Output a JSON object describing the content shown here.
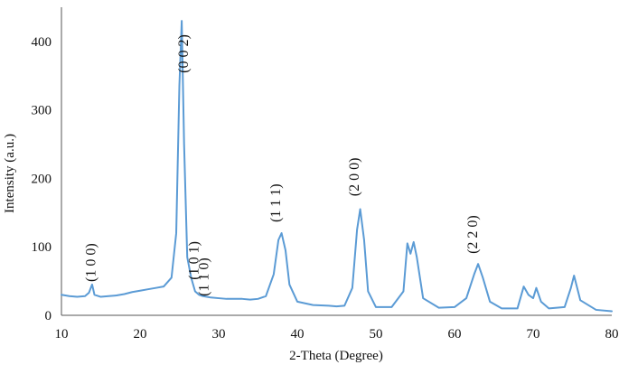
{
  "chart_data": {
    "type": "line",
    "title": "",
    "xlabel": "2-Theta (Degree)",
    "ylabel": "Intensity (a.u.)",
    "xlim": [
      10,
      80
    ],
    "ylim": [
      0,
      450
    ],
    "xticks": [
      10,
      20,
      30,
      40,
      50,
      60,
      70,
      80
    ],
    "yticks": [
      0,
      100,
      200,
      300,
      400
    ],
    "grid": false,
    "line_color": "#5b9bd5",
    "series": [
      {
        "x": [
          10,
          11,
          12,
          13,
          13.5,
          13.9,
          14.2,
          15,
          16,
          17,
          18,
          19,
          20,
          21,
          22,
          23,
          24,
          24.6,
          25.0,
          25.3,
          25.6,
          26.0,
          26.5,
          27.0,
          27.5,
          28.0,
          29.0,
          30.0,
          31.0,
          32.0,
          33.0,
          34.0,
          35.0,
          36.0,
          37.0,
          37.6,
          38.0,
          38.5,
          39.0,
          40.0,
          42.0,
          44.0,
          45.0,
          46.0,
          47.0,
          47.6,
          48.0,
          48.5,
          49.0,
          50.0,
          52.0,
          53.5,
          54.0,
          54.4,
          54.8,
          55.2,
          56.0,
          58.0,
          60.0,
          61.5,
          62.5,
          63.0,
          63.6,
          64.5,
          66.0,
          68.0,
          68.8,
          69.4,
          70.0,
          70.4,
          71.0,
          72.0,
          74.0,
          74.8,
          75.2,
          76.0,
          78.0,
          80.0
        ],
        "y": [
          30,
          28,
          27,
          28,
          33,
          45,
          30,
          27,
          28,
          29,
          31,
          34,
          36,
          38,
          40,
          42,
          55,
          120,
          335,
          430,
          250,
          85,
          55,
          35,
          30,
          28,
          26,
          25,
          24,
          24,
          24,
          23,
          24,
          28,
          60,
          110,
          120,
          95,
          45,
          20,
          15,
          14,
          13,
          14,
          40,
          125,
          155,
          110,
          35,
          12,
          12,
          35,
          105,
          90,
          107,
          85,
          25,
          11,
          12,
          25,
          60,
          75,
          55,
          20,
          10,
          10,
          42,
          30,
          25,
          40,
          20,
          10,
          12,
          40,
          58,
          22,
          8,
          6
        ]
      }
    ],
    "annotations": [
      {
        "text": "(0 0 2)",
        "x": 26.1,
        "y": 382
      },
      {
        "text": "(1 0 0)",
        "x": 14.3,
        "y": 77
      },
      {
        "text": "(1 0 1)",
        "x": 27.4,
        "y": 80
      },
      {
        "text": "(1 1 0)",
        "x": 28.7,
        "y": 56
      },
      {
        "text": "(1 1 1)",
        "x": 37.8,
        "y": 164
      },
      {
        "text": "(2 0 0)",
        "x": 47.8,
        "y": 202
      },
      {
        "text": "(2 2 0)",
        "x": 62.9,
        "y": 118
      }
    ]
  }
}
